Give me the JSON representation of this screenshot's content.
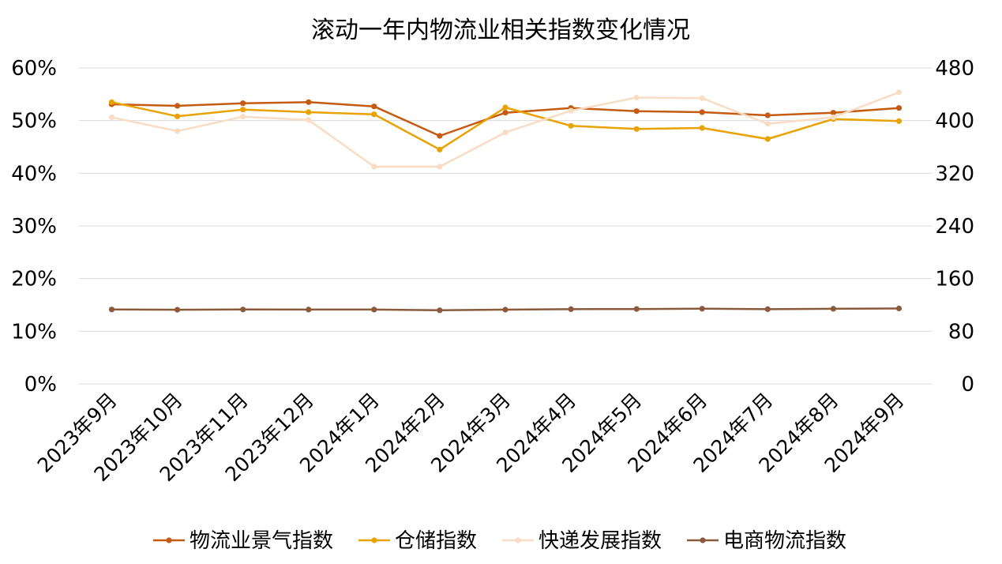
{
  "chart_data": {
    "type": "line",
    "title": "滚动一年内物流业相关指数变化情况",
    "categories": [
      "2023年9月",
      "2023年10月",
      "2023年11月",
      "2023年12月",
      "2024年1月",
      "2024年2月",
      "2024年3月",
      "2024年4月",
      "2024年5月",
      "2024年6月",
      "2024年7月",
      "2024年8月",
      "2024年9月"
    ],
    "y_left": {
      "ylim": [
        0,
        60
      ],
      "ticks": [
        0,
        10,
        20,
        30,
        40,
        50,
        60
      ],
      "tick_labels": [
        "0%",
        "10%",
        "20%",
        "30%",
        "40%",
        "50%",
        "60%"
      ]
    },
    "y_right": {
      "ylim": [
        0,
        480
      ],
      "ticks": [
        0,
        80,
        160,
        240,
        320,
        400,
        480
      ],
      "tick_labels": [
        "0",
        "80",
        "160",
        "240",
        "320",
        "400",
        "480"
      ]
    },
    "grid": true,
    "legend_position": "bottom",
    "series": [
      {
        "name": "物流业景气指数",
        "axis": "left",
        "color": "#c55a11",
        "values": [
          53.1,
          52.8,
          53.3,
          53.5,
          52.7,
          47.1,
          51.5,
          52.4,
          51.8,
          51.6,
          51.0,
          51.5,
          52.4
        ]
      },
      {
        "name": "仓储指数",
        "axis": "left",
        "color": "#e8a202",
        "values": [
          53.5,
          50.8,
          52.1,
          51.6,
          51.2,
          44.5,
          52.5,
          49.0,
          48.4,
          48.6,
          46.5,
          50.3,
          49.9
        ]
      },
      {
        "name": "快递发展指数",
        "axis": "right",
        "color": "#f8ddc4",
        "values": [
          405,
          384,
          406,
          401,
          330,
          330,
          382,
          415,
          435,
          434,
          395,
          405,
          443
        ]
      },
      {
        "name": "电商物流指数",
        "axis": "right",
        "color": "#8b5a3c",
        "values": [
          113.0,
          112.7,
          113.1,
          112.9,
          112.9,
          111.8,
          112.8,
          113.5,
          113.8,
          114.3,
          113.5,
          114.1,
          114.6
        ]
      }
    ]
  }
}
